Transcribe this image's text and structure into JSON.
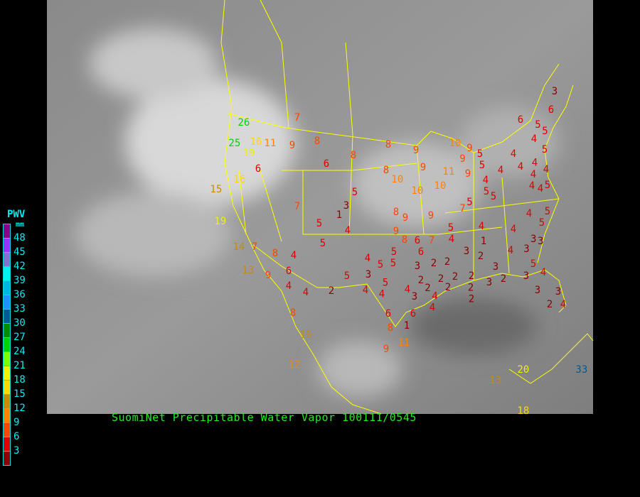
{
  "title": "SuomiNet Precipitable Water Vapor 100111/0545",
  "legend": {
    "title": "PWV",
    "unit": "mm",
    "labels": [
      "48",
      "45",
      "42",
      "39",
      "36",
      "33",
      "30",
      "27",
      "24",
      "21",
      "18",
      "15",
      "12",
      "9",
      "6",
      "3"
    ],
    "colors": [
      "#8b008b",
      "#9b30ff",
      "#8470cf",
      "#00eeee",
      "#00b4e6",
      "#1e90ff",
      "#005a96",
      "#008c00",
      "#00d200",
      "#7cff00",
      "#f0f000",
      "#ffd700",
      "#c88c00",
      "#ff8200",
      "#ff4600",
      "#dc0000",
      "#8b0000"
    ]
  },
  "stations": [
    7,
    26,
    25,
    19,
    16,
    11,
    9,
    8,
    6,
    6,
    8,
    8,
    8,
    10,
    15,
    16,
    5,
    3,
    1,
    7,
    5,
    4,
    5,
    19,
    14,
    7,
    8,
    4,
    6,
    13,
    9,
    4,
    4,
    2,
    5,
    4,
    5,
    5,
    5,
    3,
    5,
    4,
    4,
    4,
    3,
    6,
    3,
    2,
    2,
    2,
    2,
    2,
    2,
    2,
    3,
    2,
    3,
    2,
    2,
    2,
    3,
    2,
    4,
    3,
    3,
    3,
    5,
    4,
    3,
    2,
    3,
    4,
    6,
    6,
    1,
    8,
    11,
    9,
    4,
    4,
    8,
    15,
    12,
    13,
    20,
    18,
    33,
    9,
    10,
    9,
    9,
    11,
    9,
    5,
    5,
    4,
    5,
    5,
    4,
    4,
    4,
    4,
    4,
    4,
    5,
    5,
    3,
    4,
    4,
    4,
    1,
    5,
    7,
    5,
    4,
    9,
    7,
    6,
    8,
    9,
    8,
    9,
    10,
    10,
    9,
    6,
    5,
    4,
    5,
    5,
    4,
    3,
    6,
    5,
    4
  ]
}
